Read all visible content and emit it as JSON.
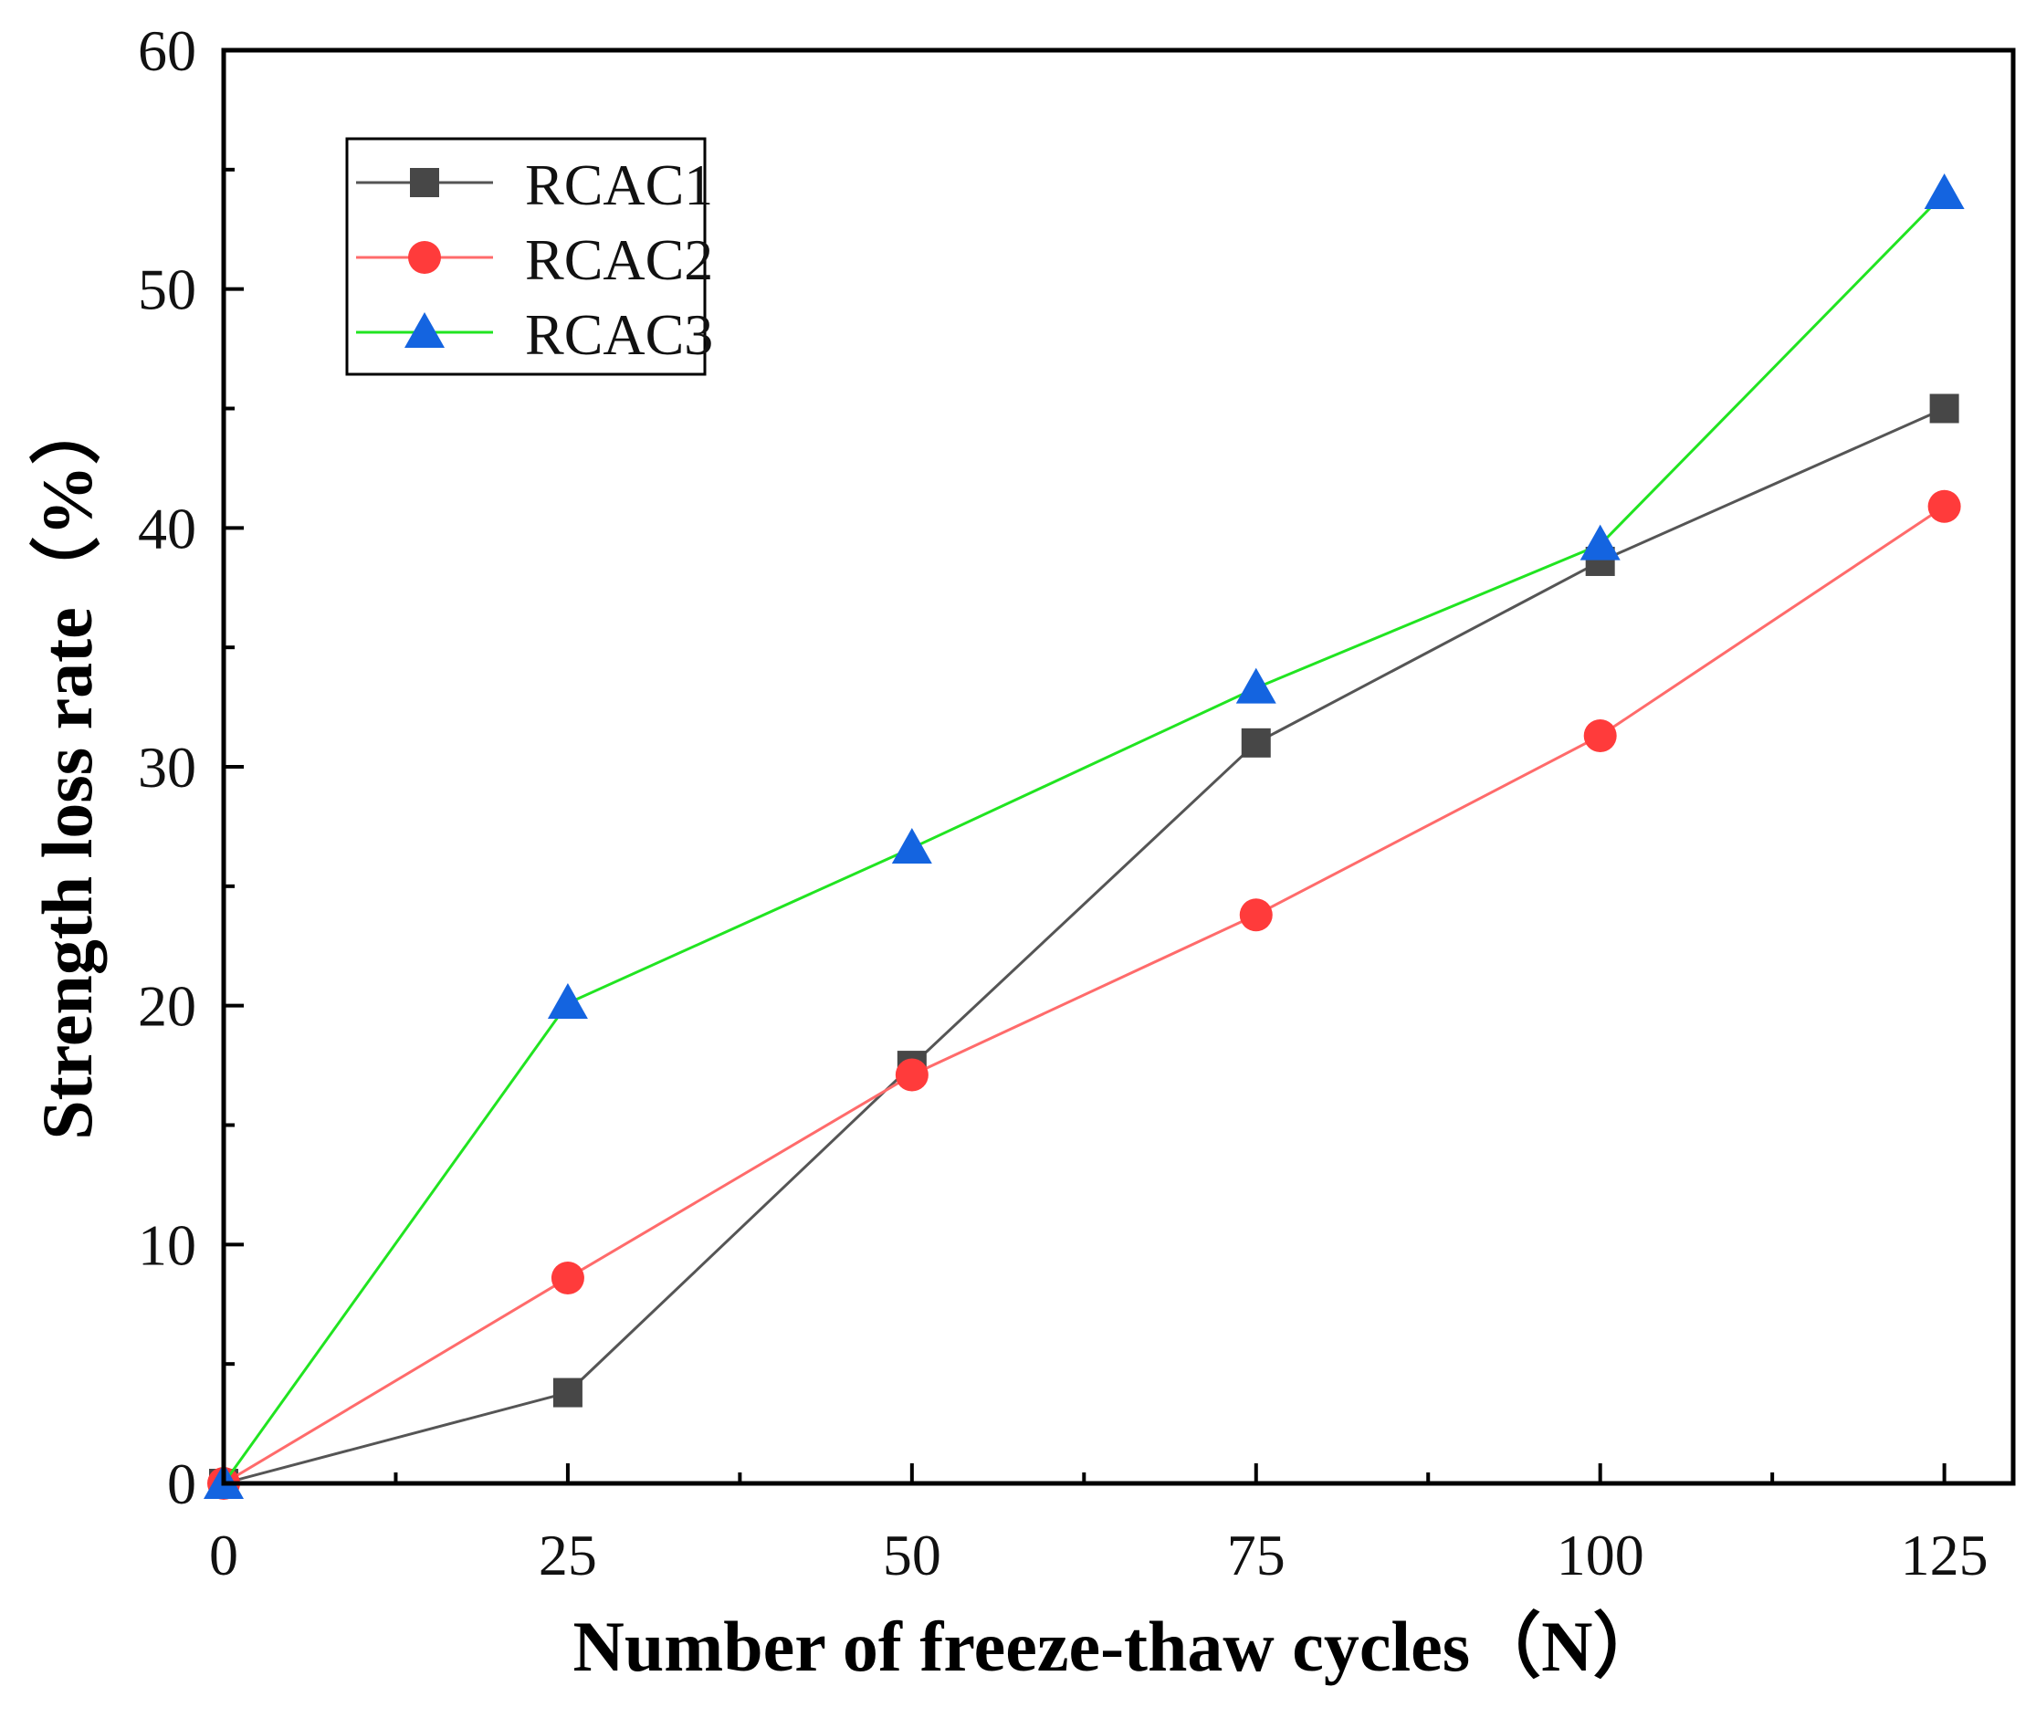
{
  "chart_data": {
    "type": "line",
    "title": "",
    "xlabel": "Number of freeze-thaw cycles（N）",
    "ylabel": "Strength loss rate（%）",
    "x": [
      0,
      25,
      50,
      75,
      100,
      125
    ],
    "xlim": [
      0,
      130
    ],
    "ylim": [
      0,
      60
    ],
    "xticks": [
      0,
      25,
      50,
      75,
      100,
      125
    ],
    "yticks": [
      0,
      10,
      20,
      30,
      40,
      50,
      60
    ],
    "x_minor_ticks": [
      12.5,
      37.5,
      62.5,
      87.5,
      112.5
    ],
    "y_minor_ticks": [
      5,
      15,
      25,
      35,
      45,
      55
    ],
    "grid": false,
    "legend_position": "top-left",
    "series": [
      {
        "name": "RCAC1",
        "values": [
          0,
          3.8,
          17.5,
          31,
          38.6,
          45
        ],
        "line_color": "#555555",
        "marker_color": "#474747",
        "marker": "square"
      },
      {
        "name": "RCAC2",
        "values": [
          0,
          8.6,
          17.1,
          23.8,
          31.3,
          40.9
        ],
        "line_color": "#ff6b6b",
        "marker_color": "#ff3b3b",
        "marker": "circle"
      },
      {
        "name": "RCAC3",
        "values": [
          0,
          20.1,
          26.6,
          33.3,
          39.3,
          54
        ],
        "line_color": "#21e421",
        "marker_color": "#1464e0",
        "marker": "triangle"
      }
    ]
  }
}
